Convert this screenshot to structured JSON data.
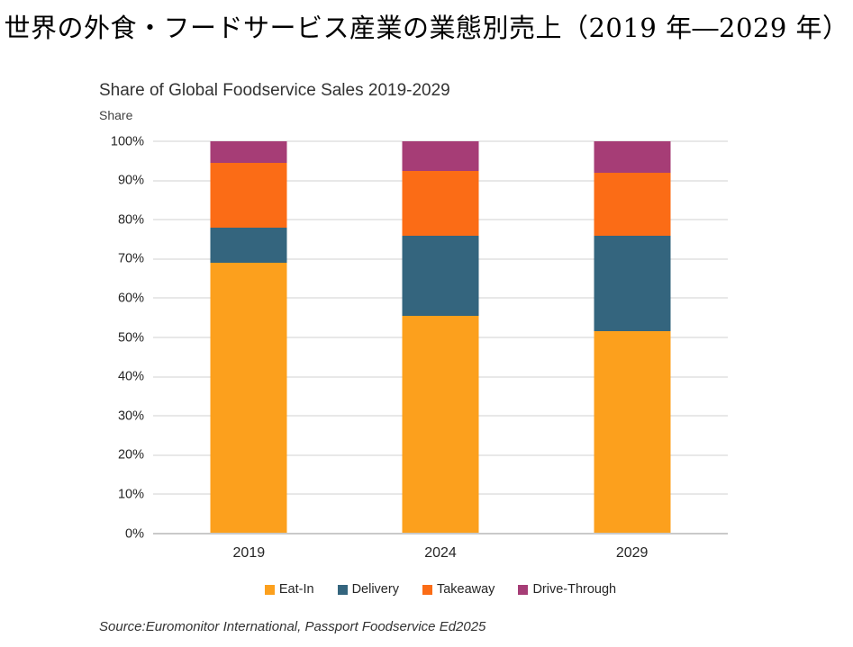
{
  "page": {
    "title_jp": "世界の外食・フードサービス産業の業態別売上（2019 年―2029 年）"
  },
  "chart": {
    "title": "Share of Global Foodservice Sales 2019-2029",
    "y_axis_title": "Share",
    "source": "Source:Euromonitor International, Passport Foodservice Ed2025"
  },
  "chart_data": {
    "type": "bar",
    "stacked": true,
    "percent_stacked": true,
    "title": "Share of Global Foodservice Sales 2019-2029",
    "xlabel": "",
    "ylabel": "Share",
    "categories": [
      "2019",
      "2024",
      "2029"
    ],
    "series": [
      {
        "name": "Eat-In",
        "color": "#FCA01D",
        "values": [
          69.0,
          55.5,
          51.5
        ]
      },
      {
        "name": "Delivery",
        "color": "#34657E",
        "values": [
          9.0,
          20.5,
          24.5
        ]
      },
      {
        "name": "Takeaway",
        "color": "#FB6C16",
        "values": [
          16.5,
          16.5,
          16.0
        ]
      },
      {
        "name": "Drive-Through",
        "color": "#A63D76",
        "values": [
          5.5,
          7.5,
          8.0
        ]
      }
    ],
    "ylim": [
      0,
      100
    ],
    "y_tick_step": 10,
    "y_tick_labels": [
      "0%",
      "10%",
      "20%",
      "30%",
      "40%",
      "50%",
      "60%",
      "70%",
      "80%",
      "90%",
      "100%"
    ],
    "grid": true,
    "legend_position": "bottom",
    "colors": {
      "gridline": "#e8e8e8",
      "baseline": "#c9c9c9",
      "text": "#262626"
    }
  }
}
